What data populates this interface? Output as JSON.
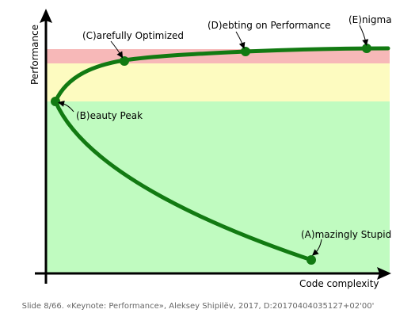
{
  "axes": {
    "x_label": "Code complexity",
    "y_label": "Performance"
  },
  "colors": {
    "band_top": "#f7b8b8",
    "band_middle": "#fdfbc0",
    "band_bottom": "#c0fbc0",
    "curve": "#127a12",
    "axis": "#000000",
    "pointer": "#000000"
  },
  "points": {
    "a": "(A)mazingly Stupid",
    "b": "(B)eauty Peak",
    "c": "(C)arefully Optimized",
    "d": "(D)ebting on Performance",
    "e": "(E)nigma"
  },
  "footer": "Slide 8/66. «Keynote: Performance», Aleksey Shipilëv, 2017, D:20170404035127+02'00'"
}
